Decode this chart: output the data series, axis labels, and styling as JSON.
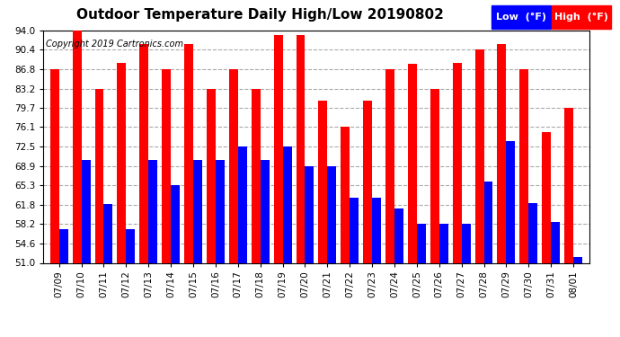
{
  "title": "Outdoor Temperature Daily High/Low 20190802",
  "copyright": "Copyright 2019 Cartronics.com",
  "legend_low": "Low  (°F)",
  "legend_high": "High  (°F)",
  "dates": [
    "07/09",
    "07/10",
    "07/11",
    "07/12",
    "07/13",
    "07/14",
    "07/15",
    "07/16",
    "07/17",
    "07/18",
    "07/19",
    "07/20",
    "07/21",
    "07/22",
    "07/23",
    "07/24",
    "07/25",
    "07/26",
    "07/27",
    "07/28",
    "07/29",
    "07/30",
    "07/31",
    "08/01"
  ],
  "highs": [
    86.8,
    94.0,
    83.2,
    88.0,
    91.4,
    86.8,
    91.4,
    83.2,
    86.8,
    83.2,
    93.2,
    93.2,
    81.0,
    76.1,
    81.0,
    86.8,
    87.8,
    83.2,
    88.0,
    90.4,
    91.4,
    86.8,
    75.2,
    79.7
  ],
  "lows": [
    57.2,
    70.0,
    61.9,
    57.2,
    70.0,
    65.3,
    70.0,
    70.0,
    72.5,
    70.0,
    72.5,
    68.9,
    68.9,
    63.0,
    63.0,
    61.0,
    58.2,
    58.2,
    58.2,
    66.0,
    73.5,
    62.0,
    58.5,
    52.0
  ],
  "ymin": 51.0,
  "ymax": 94.0,
  "yticks": [
    51.0,
    54.6,
    58.2,
    61.8,
    65.3,
    68.9,
    72.5,
    76.1,
    79.7,
    83.2,
    86.8,
    90.4,
    94.0
  ],
  "bg_color": "#ffffff",
  "plot_bg_color": "#ffffff",
  "grid_color": "#aaaaaa",
  "bar_width": 0.4,
  "high_color": "#ff0000",
  "low_color": "#0000ff",
  "title_fontsize": 11,
  "copyright_fontsize": 7,
  "tick_fontsize": 7.5,
  "legend_fontsize": 8
}
